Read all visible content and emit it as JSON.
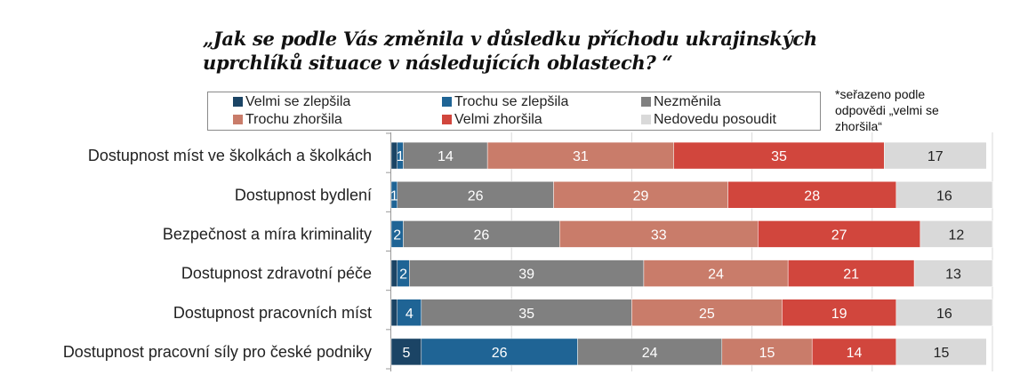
{
  "chart_data": {
    "type": "bar",
    "orientation": "horizontal",
    "stacked": "percent",
    "title": "„Jak se podle Vás změnila v důsledku příchodu ukrajinských uprchlíků situace v následujících oblastech? “",
    "title_lines": [
      "„Jak se podle Vás změnila v důsledku příchodu ukrajinských",
      "uprchlíků situace v následujících oblastech? “"
    ],
    "note_lines": [
      "*seřazeno podle",
      "odpovědi „velmi se",
      "zhoršila“"
    ],
    "xlabel": "",
    "ylabel": "",
    "xlim": [
      0,
      100
    ],
    "grid": true,
    "legend_position": "top",
    "categories": [
      "Dostupnost míst ve školkách a školkách",
      "Dostupnost bydlení",
      "Bezpečnost a míra kriminality",
      "Dostupnost zdravotní péče",
      "Dostupnost pracovních míst",
      "Dostupnost pracovní síly pro české podniky"
    ],
    "series": [
      {
        "name": "Velmi se zlepšila",
        "color": "#1b4465",
        "label_color": "#ffffff",
        "values": [
          1,
          0,
          0,
          1,
          1,
          5
        ],
        "labels": [
          "",
          "",
          "",
          "",
          "",
          "5"
        ]
      },
      {
        "name": "Trochu se zlepšila",
        "color": "#1f6495",
        "label_color": "#ffffff",
        "values": [
          1,
          1,
          2,
          2,
          4,
          26
        ],
        "labels": [
          "1",
          "1",
          "2",
          "2",
          "4",
          "26"
        ]
      },
      {
        "name": "Nezměnila",
        "color": "#808080",
        "label_color": "#ffffff",
        "values": [
          14,
          26,
          26,
          39,
          35,
          24
        ],
        "labels": [
          "14",
          "26",
          "26",
          "39",
          "35",
          "24"
        ]
      },
      {
        "name": "Trochu zhoršila",
        "color": "#c97c6a",
        "label_color": "#ffffff",
        "values": [
          31,
          29,
          33,
          24,
          25,
          15
        ],
        "labels": [
          "31",
          "29",
          "33",
          "24",
          "25",
          "15"
        ]
      },
      {
        "name": "Velmi zhoršila",
        "color": "#d1463d",
        "label_color": "#ffffff",
        "values": [
          35,
          28,
          27,
          21,
          19,
          14
        ],
        "labels": [
          "35",
          "28",
          "27",
          "21",
          "19",
          "14"
        ]
      },
      {
        "name": "Nedovedu posoudit",
        "color": "#d9d9d9",
        "label_color": "#222222",
        "values": [
          17,
          16,
          12,
          13,
          16,
          15
        ],
        "labels": [
          "17",
          "16",
          "12",
          "13",
          "16",
          "15"
        ]
      }
    ]
  }
}
